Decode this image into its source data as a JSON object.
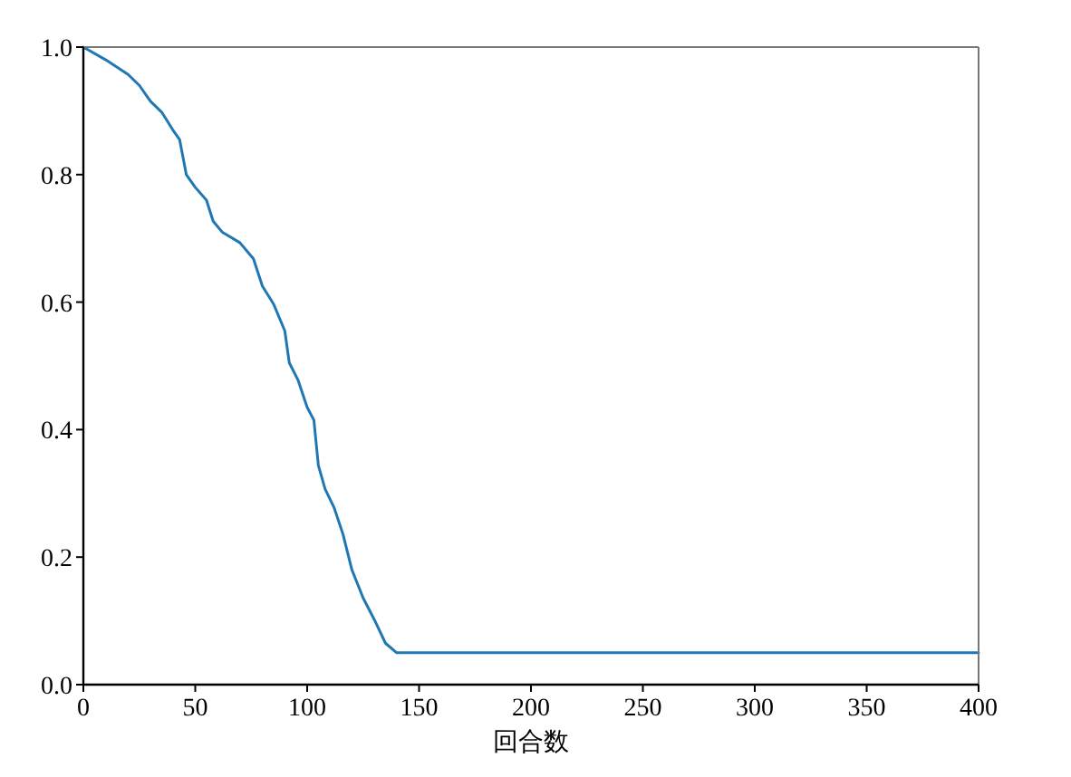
{
  "chart_data": {
    "type": "line",
    "xlabel": "回合数",
    "x": [
      0,
      10,
      20,
      25,
      30,
      35,
      40,
      43,
      46,
      50,
      55,
      58,
      62,
      70,
      76,
      80,
      85,
      90,
      92,
      96,
      100,
      103,
      105,
      108,
      112,
      116,
      120,
      125,
      130,
      135,
      140,
      145,
      400
    ],
    "series": [
      {
        "color": "#1f77b4",
        "values": [
          1.0,
          0.98,
          0.957,
          0.94,
          0.915,
          0.898,
          0.87,
          0.855,
          0.8,
          0.78,
          0.76,
          0.727,
          0.71,
          0.693,
          0.668,
          0.625,
          0.597,
          0.555,
          0.505,
          0.477,
          0.435,
          0.415,
          0.344,
          0.307,
          0.278,
          0.236,
          0.18,
          0.136,
          0.102,
          0.065,
          0.05,
          0.05,
          0.05
        ]
      }
    ],
    "xlim": [
      0,
      400
    ],
    "ylim": [
      0,
      1
    ],
    "xticks": [
      0,
      50,
      100,
      150,
      200,
      250,
      300,
      350,
      400
    ],
    "yticks": [
      {
        "value": 0,
        "label": "0.0"
      },
      {
        "value": 0.2,
        "label": "0.2"
      },
      {
        "value": 0.4,
        "label": "0.4"
      },
      {
        "value": 0.6,
        "label": "0.6"
      },
      {
        "value": 0.8,
        "label": "0.8"
      },
      {
        "value": 1,
        "label": "1.0"
      }
    ],
    "grid": false,
    "marker": "none",
    "line_style": "solid"
  }
}
